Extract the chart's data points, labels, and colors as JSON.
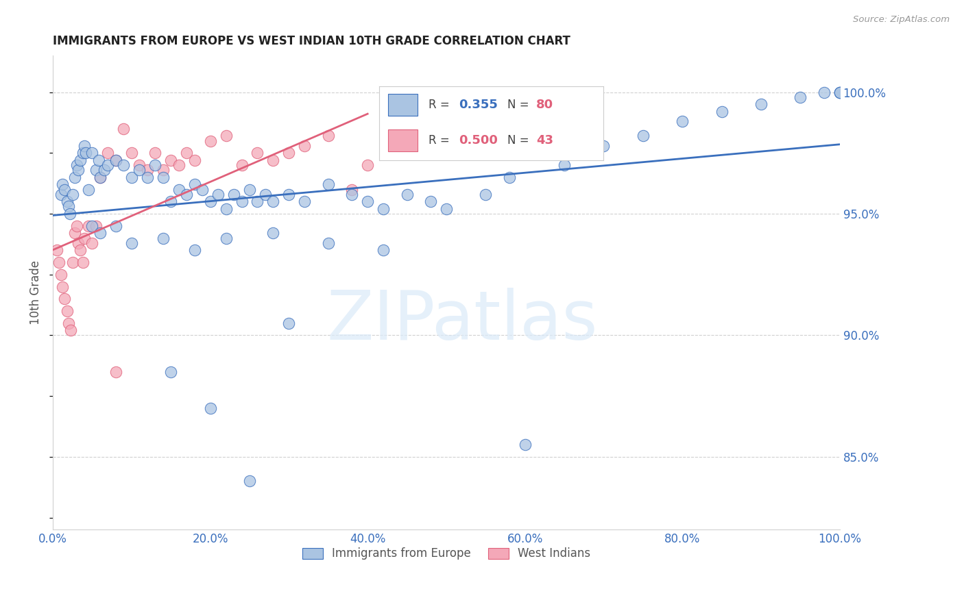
{
  "title": "IMMIGRANTS FROM EUROPE VS WEST INDIAN 10TH GRADE CORRELATION CHART",
  "source": "Source: ZipAtlas.com",
  "ylabel": "10th Grade",
  "watermark": "ZIPatlas",
  "xlim": [
    0.0,
    100.0
  ],
  "ylim": [
    82.0,
    101.5
  ],
  "yticks": [
    85.0,
    90.0,
    95.0,
    100.0
  ],
  "xticks": [
    0.0,
    20.0,
    40.0,
    60.0,
    80.0,
    100.0
  ],
  "blue_label": "Immigrants from Europe",
  "pink_label": "West Indians",
  "blue_R": "0.355",
  "blue_N": "80",
  "pink_R": "0.500",
  "pink_N": "43",
  "blue_color": "#aac4e2",
  "pink_color": "#f4a8b8",
  "blue_line_color": "#3a6fbd",
  "pink_line_color": "#e0607a",
  "blue_scatter_x": [
    1.0,
    1.2,
    1.5,
    1.8,
    2.0,
    2.2,
    2.5,
    2.8,
    3.0,
    3.2,
    3.5,
    3.8,
    4.0,
    4.2,
    4.5,
    5.0,
    5.5,
    5.8,
    6.0,
    6.5,
    7.0,
    8.0,
    9.0,
    10.0,
    11.0,
    12.0,
    13.0,
    14.0,
    15.0,
    16.0,
    17.0,
    18.0,
    19.0,
    20.0,
    21.0,
    22.0,
    23.0,
    24.0,
    25.0,
    26.0,
    27.0,
    28.0,
    30.0,
    32.0,
    35.0,
    38.0,
    40.0,
    42.0,
    45.0,
    48.0,
    50.0,
    55.0,
    58.0,
    62.0,
    65.0,
    70.0,
    75.0,
    80.0,
    85.0,
    90.0,
    95.0,
    98.0,
    100.0,
    100.0,
    100.0,
    5.0,
    6.0,
    8.0,
    10.0,
    14.0,
    18.0,
    22.0,
    28.0,
    35.0,
    42.0,
    15.0,
    20.0,
    25.0,
    30.0,
    60.0
  ],
  "blue_scatter_y": [
    95.8,
    96.2,
    96.0,
    95.5,
    95.3,
    95.0,
    95.8,
    96.5,
    97.0,
    96.8,
    97.2,
    97.5,
    97.8,
    97.5,
    96.0,
    97.5,
    96.8,
    97.2,
    96.5,
    96.8,
    97.0,
    97.2,
    97.0,
    96.5,
    96.8,
    96.5,
    97.0,
    96.5,
    95.5,
    96.0,
    95.8,
    96.2,
    96.0,
    95.5,
    95.8,
    95.2,
    95.8,
    95.5,
    96.0,
    95.5,
    95.8,
    95.5,
    95.8,
    95.5,
    96.2,
    95.8,
    95.5,
    95.2,
    95.8,
    95.5,
    95.2,
    95.8,
    96.5,
    97.5,
    97.0,
    97.8,
    98.2,
    98.8,
    99.2,
    99.5,
    99.8,
    100.0,
    100.0,
    100.0,
    100.0,
    94.5,
    94.2,
    94.5,
    93.8,
    94.0,
    93.5,
    94.0,
    94.2,
    93.8,
    93.5,
    88.5,
    87.0,
    84.0,
    90.5,
    85.5
  ],
  "pink_scatter_x": [
    0.5,
    0.8,
    1.0,
    1.2,
    1.5,
    1.8,
    2.0,
    2.3,
    2.5,
    2.8,
    3.0,
    3.2,
    3.5,
    3.8,
    4.0,
    4.5,
    5.0,
    5.5,
    6.0,
    7.0,
    8.0,
    9.0,
    10.0,
    11.0,
    12.0,
    13.0,
    14.0,
    15.0,
    16.0,
    17.0,
    18.0,
    20.0,
    22.0,
    24.0,
    26.0,
    28.0,
    30.0,
    32.0,
    35.0,
    38.0,
    40.0,
    50.0,
    8.0
  ],
  "pink_scatter_y": [
    93.5,
    93.0,
    92.5,
    92.0,
    91.5,
    91.0,
    90.5,
    90.2,
    93.0,
    94.2,
    94.5,
    93.8,
    93.5,
    93.0,
    94.0,
    94.5,
    93.8,
    94.5,
    96.5,
    97.5,
    97.2,
    98.5,
    97.5,
    97.0,
    96.8,
    97.5,
    96.8,
    97.2,
    97.0,
    97.5,
    97.2,
    98.0,
    98.2,
    97.0,
    97.5,
    97.2,
    97.5,
    97.8,
    98.2,
    96.0,
    97.0,
    99.0,
    88.5
  ]
}
